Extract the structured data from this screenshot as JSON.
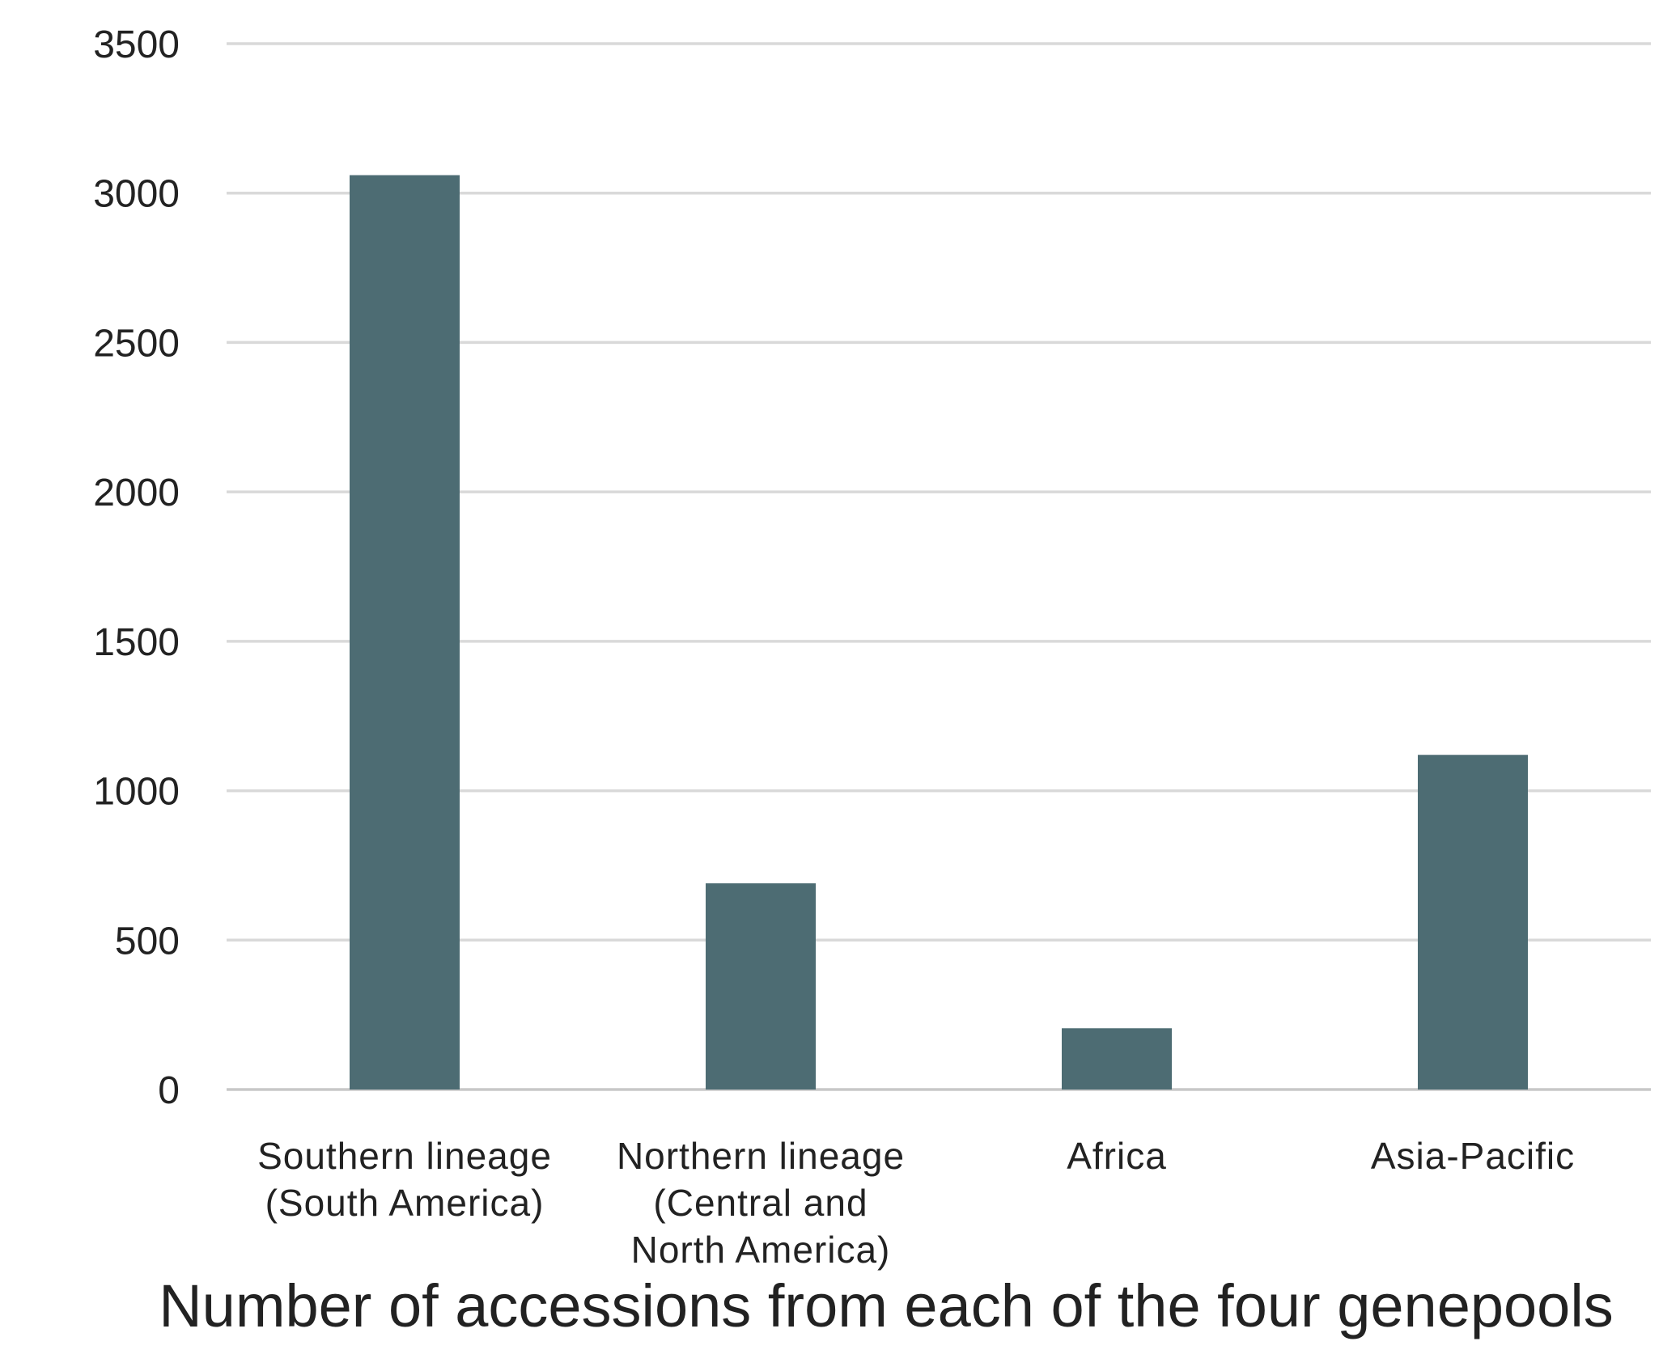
{
  "chart_data": {
    "type": "bar",
    "categories": [
      [
        "Southern lineage",
        "(South America)"
      ],
      [
        "Northern lineage",
        "(Central and",
        "North America)"
      ],
      [
        "Africa"
      ],
      [
        "Asia-Pacific"
      ]
    ],
    "values": [
      3060,
      690,
      205,
      1120
    ],
    "ylim": [
      0,
      3500
    ],
    "yticks": [
      "0",
      "500",
      "1000",
      "1500",
      "2000",
      "2500",
      "3000",
      "3500"
    ],
    "grid": true,
    "bar_color": "#4d6c73",
    "caption": "Number of accessions from each of the four genepools"
  }
}
